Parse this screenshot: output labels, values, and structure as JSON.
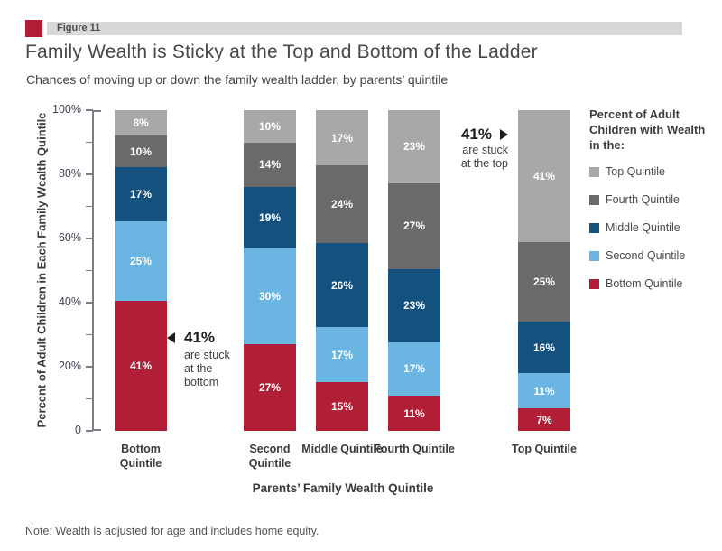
{
  "figure": {
    "label": "Figure 11"
  },
  "title": "Family Wealth is Sticky at the Top and Bottom of the Ladder",
  "subtitle": "Chances of moving up or down the family wealth ladder, by parents’ quintile",
  "note": "Note: Wealth is adjusted for age and includes home equity.",
  "chart_data": {
    "type": "bar",
    "stacked": true,
    "title": "Family Wealth is Sticky at the Top and Bottom of the Ladder",
    "xlabel": "Parents’ Family Wealth Quintile",
    "ylabel": "Percent of Adult Children in Each Family Wealth Quintile",
    "ylim": [
      0,
      100
    ],
    "y_tick_labels": [
      "0",
      "20%",
      "40%",
      "60%",
      "80%",
      "100%"
    ],
    "y_minor_tick_step": 10,
    "grid": false,
    "legend_position": "right",
    "categories": [
      "Bottom Quintile",
      "Second Quintile",
      "Middle Quintile",
      "Fourth Quintile",
      "Top Quintile"
    ],
    "series": [
      {
        "name": "Bottom Quintile",
        "color": "#b11f36",
        "values": [
          41,
          27,
          15,
          11,
          7
        ]
      },
      {
        "name": "Second Quintile",
        "color": "#6ab5e1",
        "values": [
          25,
          30,
          17,
          17,
          11
        ]
      },
      {
        "name": "Middle Quintile",
        "color": "#14517f",
        "values": [
          17,
          19,
          26,
          23,
          16
        ]
      },
      {
        "name": "Fourth Quintile",
        "color": "#6a6a6a",
        "values": [
          10,
          14,
          24,
          27,
          25
        ]
      },
      {
        "name": "Top Quintile",
        "color": "#a8a8a8",
        "values": [
          8,
          10,
          17,
          23,
          41
        ]
      }
    ],
    "value_label_format": "{v}%"
  },
  "legend": {
    "title": "Percent of Adult Children with Wealth in the:",
    "items": [
      {
        "label": "Top Quintile",
        "color": "#a8a8a8"
      },
      {
        "label": "Fourth Quintile",
        "color": "#6a6a6a"
      },
      {
        "label": "Middle Quintile",
        "color": "#14517f"
      },
      {
        "label": "Second Quintile",
        "color": "#6ab5e1"
      },
      {
        "label": "Bottom Quintile",
        "color": "#b11f36"
      }
    ]
  },
  "annotations": {
    "bottom": {
      "value": "41%",
      "lines": [
        "are stuck",
        "at the",
        "bottom"
      ]
    },
    "top": {
      "value": "41%",
      "lines": [
        "are stuck",
        "at the top"
      ]
    }
  },
  "colors": {
    "accent_red": "#b11f36",
    "band_gray": "#d8d8d8",
    "axis": "#7a7f87",
    "text_dark": "#3b3b3d"
  }
}
